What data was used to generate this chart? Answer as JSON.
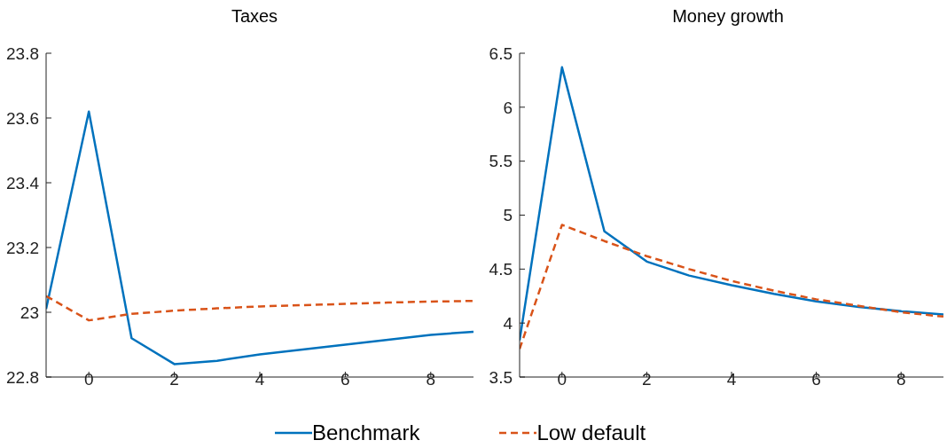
{
  "chart_data": [
    {
      "type": "line",
      "title": "Taxes",
      "x": [
        -1,
        0,
        1,
        2,
        3,
        4,
        5,
        6,
        7,
        8,
        9
      ],
      "xlim": [
        -1,
        9
      ],
      "xticks": [
        0,
        2,
        4,
        6,
        8
      ],
      "ylim": [
        22.8,
        23.8
      ],
      "yticks": [
        22.8,
        23,
        23.2,
        23.4,
        23.6,
        23.8
      ],
      "grid": false,
      "legend": "bottom",
      "marker": "none",
      "series": [
        {
          "name": "Benchmark",
          "color": "#0072bd",
          "line_style": "solid",
          "values": [
            23.01,
            23.62,
            22.92,
            22.84,
            22.85,
            22.87,
            22.885,
            22.9,
            22.915,
            22.93,
            22.94
          ]
        },
        {
          "name": "Low default",
          "color": "#d95319",
          "line_style": "dashed",
          "values": [
            23.05,
            22.975,
            22.995,
            23.005,
            23.012,
            23.018,
            23.022,
            23.026,
            23.03,
            23.033,
            23.035
          ]
        }
      ]
    },
    {
      "type": "line",
      "title": "Money growth",
      "x": [
        -1,
        0,
        1,
        2,
        3,
        4,
        5,
        6,
        7,
        8,
        9
      ],
      "xlim": [
        -1,
        9
      ],
      "xticks": [
        0,
        2,
        4,
        6,
        8
      ],
      "ylim": [
        3.5,
        6.5
      ],
      "yticks": [
        3.5,
        4,
        4.5,
        5,
        5.5,
        6,
        6.5
      ],
      "grid": false,
      "marker": "none",
      "series": [
        {
          "color": "#0072bd",
          "line_style": "solid",
          "values": [
            3.84,
            6.37,
            4.85,
            4.57,
            4.44,
            4.35,
            4.27,
            4.2,
            4.15,
            4.11,
            4.08
          ]
        },
        {
          "color": "#d95319",
          "line_style": "dashed",
          "values": [
            3.76,
            4.91,
            4.76,
            4.62,
            4.5,
            4.39,
            4.3,
            4.22,
            4.16,
            4.1,
            4.06
          ]
        }
      ]
    }
  ]
}
